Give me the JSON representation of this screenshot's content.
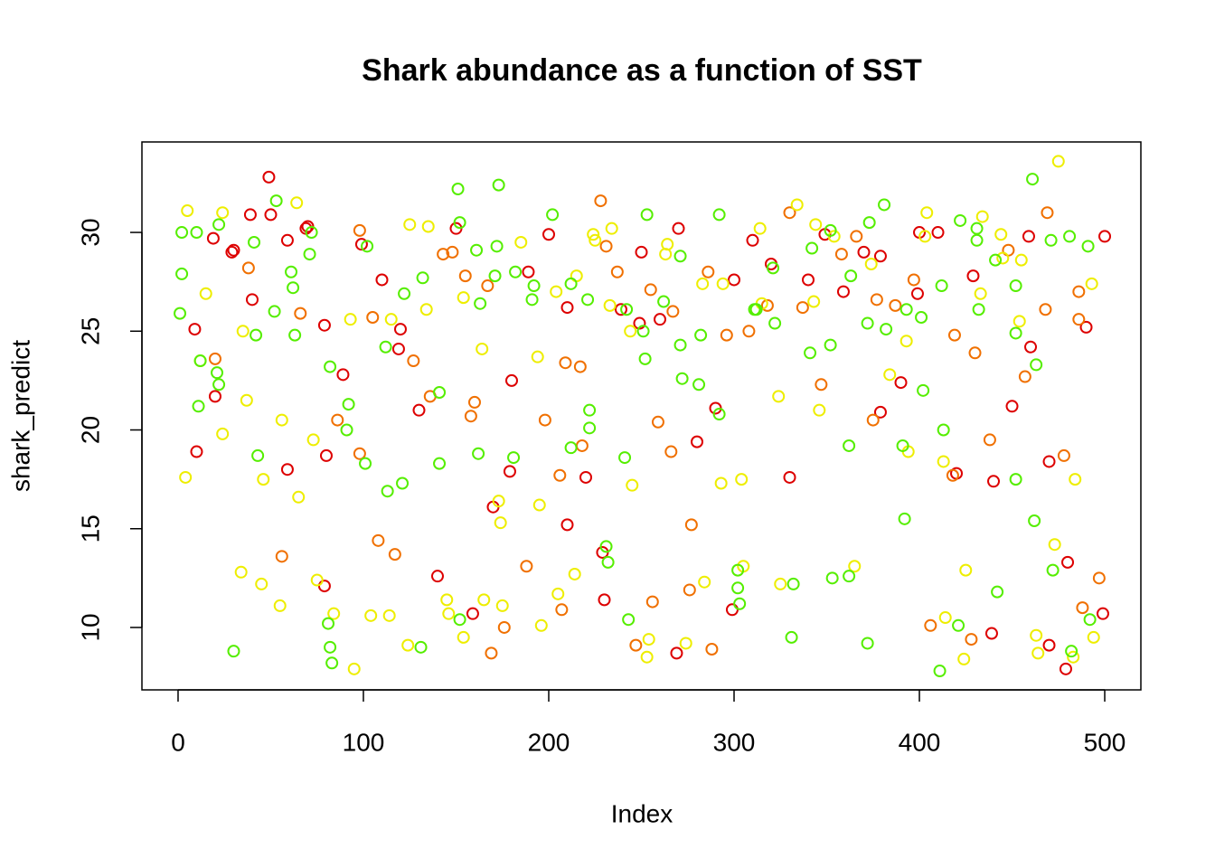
{
  "chart_data": {
    "type": "scatter",
    "title": "Shark abundance as a function of SST",
    "x_label": "Index",
    "y_label": "shark_predict",
    "xlim": [
      -19.5,
      519.5
    ],
    "ylim": [
      6.84,
      34.58
    ],
    "xticks": [
      0,
      100,
      200,
      300,
      400,
      500
    ],
    "yticks": [
      10,
      15,
      20,
      25,
      30
    ],
    "series": [
      {
        "color": "#dd0000",
        "x": [
          9,
          10,
          19,
          20,
          29,
          30,
          39,
          40,
          49,
          50,
          59,
          59,
          69,
          70,
          79,
          80,
          79,
          89,
          99,
          110,
          119,
          120,
          130,
          140,
          150,
          159,
          170,
          179,
          180,
          189,
          200,
          210,
          210,
          220,
          230,
          229,
          239,
          249,
          250,
          260,
          270,
          269,
          280,
          290,
          299,
          300,
          310,
          320,
          330,
          340,
          349,
          359,
          370,
          379,
          379,
          390,
          399,
          400,
          410,
          420,
          429,
          440,
          439,
          450,
          459,
          460,
          470,
          470,
          480,
          479,
          490,
          499,
          500
        ],
        "values": [
          25.1,
          18.9,
          29.7,
          21.7,
          29,
          29.1,
          30.9,
          26.6,
          32.8,
          30.9,
          29.6,
          18,
          30.2,
          30.3,
          12.1,
          18.7,
          25.3,
          22.8,
          29.4,
          27.6,
          24.1,
          25.1,
          21,
          12.6,
          30.2,
          10.7,
          16.1,
          17.9,
          22.5,
          28,
          29.9,
          26.2,
          15.2,
          17.6,
          11.4,
          13.8,
          26.1,
          25.4,
          29,
          25.6,
          30.2,
          8.7,
          19.4,
          21.1,
          10.9,
          27.6,
          29.6,
          28.4,
          17.6,
          27.6,
          29.9,
          27,
          29,
          20.9,
          28.8,
          22.4,
          26.9,
          30,
          30,
          17.8,
          27.8,
          17.4,
          9.7,
          21.2,
          29.8,
          24.2,
          9.1,
          18.4,
          13.3,
          7.9,
          25.2,
          10.7,
          29.8
        ]
      },
      {
        "color": "#f07000",
        "x": [
          20,
          38,
          56,
          66,
          86,
          98,
          98,
          105,
          108,
          117,
          127,
          136,
          143,
          148,
          155,
          158,
          160,
          167,
          169,
          176,
          188,
          198,
          206,
          207,
          209,
          217,
          218,
          228,
          231,
          237,
          247,
          255,
          256,
          259,
          266,
          267,
          277,
          276,
          286,
          288,
          296,
          308,
          318,
          330,
          337,
          347,
          358,
          366,
          375,
          377,
          387,
          397,
          406,
          418,
          419,
          428,
          430,
          438,
          448,
          457,
          468,
          469,
          478,
          486,
          488,
          497,
          486
        ],
        "values": [
          23.6,
          28.2,
          13.6,
          25.9,
          20.5,
          30.1,
          18.8,
          25.7,
          14.4,
          13.7,
          23.5,
          21.7,
          28.9,
          29,
          27.8,
          20.7,
          21.4,
          27.3,
          8.7,
          10,
          13.1,
          20.5,
          17.7,
          10.9,
          23.4,
          23.2,
          19.2,
          31.6,
          29.3,
          28,
          9.1,
          27.1,
          11.3,
          20.4,
          18.9,
          26,
          15.2,
          11.9,
          28,
          8.9,
          24.8,
          25,
          26.3,
          31,
          26.2,
          22.3,
          28.9,
          29.8,
          20.5,
          26.6,
          26.3,
          27.6,
          10.1,
          17.7,
          24.8,
          9.4,
          23.9,
          19.5,
          29.1,
          22.7,
          26.1,
          31,
          18.7,
          25.6,
          11,
          12.5,
          27
        ]
      },
      {
        "color": "#eeee00",
        "x": [
          4,
          5,
          12,
          15,
          24,
          24,
          34,
          35,
          37,
          45,
          46,
          55,
          56,
          64,
          65,
          73,
          75,
          84,
          93,
          95,
          104,
          114,
          115,
          124,
          125,
          134,
          135,
          145,
          146,
          154,
          154,
          164,
          165,
          173,
          174,
          175,
          185,
          194,
          195,
          196,
          204,
          205,
          214,
          215,
          224,
          225,
          233,
          234,
          244,
          245,
          253,
          254,
          264,
          263,
          274,
          283,
          284,
          293,
          294,
          304,
          305,
          314,
          315,
          324,
          325,
          334,
          343,
          344,
          346,
          354,
          365,
          374,
          384,
          393,
          394,
          403,
          404,
          413,
          414,
          424,
          425,
          433,
          434,
          444,
          445,
          454,
          455,
          463,
          464,
          473,
          475,
          483,
          484,
          493,
          494
        ],
        "values": [
          17.6,
          31.1,
          23.5,
          26.9,
          19.8,
          31,
          12.8,
          25,
          21.5,
          12.2,
          17.5,
          11.1,
          20.5,
          31.5,
          16.6,
          19.5,
          12.4,
          10.7,
          25.6,
          7.9,
          10.6,
          10.6,
          25.6,
          9.1,
          30.4,
          26.1,
          30.3,
          11.4,
          10.7,
          26.7,
          9.5,
          24.1,
          11.4,
          16.4,
          15.3,
          11.1,
          29.5,
          23.7,
          16.2,
          10.1,
          27,
          11.7,
          12.7,
          27.8,
          29.9,
          29.6,
          26.3,
          30.2,
          25,
          17.2,
          8.5,
          9.4,
          29.4,
          28.9,
          9.2,
          27.4,
          12.3,
          17.3,
          27.4,
          17.5,
          13.1,
          30.2,
          26.4,
          21.7,
          12.2,
          31.4,
          26.5,
          30.4,
          21,
          29.8,
          13.1,
          28.4,
          22.8,
          24.5,
          18.9,
          29.8,
          31,
          18.4,
          10.5,
          8.4,
          12.9,
          26.9,
          30.8,
          29.9,
          28.7,
          25.5,
          28.6,
          9.6,
          8.7,
          14.2,
          33.6,
          8.5,
          17.5,
          27.4,
          9.5
        ]
      },
      {
        "color": "#55ee00",
        "x": [
          1,
          2,
          2,
          10,
          11,
          12,
          21,
          22,
          22,
          30,
          41,
          42,
          43,
          52,
          53,
          61,
          62,
          63,
          71,
          72,
          81,
          82,
          82,
          83,
          91,
          92,
          101,
          102,
          112,
          113,
          121,
          122,
          131,
          132,
          141,
          141,
          151,
          152,
          152,
          161,
          162,
          163,
          171,
          172,
          173,
          181,
          182,
          191,
          192,
          202,
          212,
          212,
          222,
          222,
          221,
          231,
          232,
          241,
          242,
          243,
          251,
          252,
          253,
          262,
          271,
          271,
          272,
          281,
          282,
          292,
          292,
          302,
          302,
          303,
          311,
          312,
          322,
          321,
          331,
          332,
          341,
          342,
          352,
          352,
          353,
          362,
          362,
          363,
          372,
          372,
          373,
          381,
          382,
          391,
          392,
          393,
          401,
          402,
          411,
          412,
          413,
          421,
          422,
          431,
          431,
          432,
          441,
          442,
          452,
          452,
          452,
          461,
          462,
          463,
          471,
          472,
          481,
          482,
          491,
          492
        ],
        "values": [
          25.9,
          27.9,
          30,
          30,
          21.2,
          23.5,
          22.9,
          30.4,
          22.3,
          8.8,
          29.5,
          24.8,
          18.7,
          26,
          31.6,
          28,
          27.2,
          24.8,
          28.9,
          30,
          10.2,
          23.2,
          9,
          8.2,
          20,
          21.3,
          18.3,
          29.3,
          24.2,
          16.9,
          17.3,
          26.9,
          9,
          27.7,
          18.3,
          21.9,
          32.2,
          30.5,
          10.4,
          29.1,
          18.8,
          26.4,
          27.8,
          29.3,
          32.4,
          18.6,
          28,
          26.6,
          27.3,
          30.9,
          27.4,
          19.1,
          21,
          20.1,
          26.6,
          14.1,
          13.3,
          18.6,
          26.1,
          10.4,
          25,
          23.6,
          30.9,
          26.5,
          28.8,
          24.3,
          22.6,
          22.3,
          24.8,
          20.8,
          30.9,
          12.9,
          12,
          11.2,
          26.1,
          26.1,
          25.4,
          28.2,
          9.5,
          12.2,
          23.9,
          29.2,
          30.1,
          24.3,
          12.5,
          19.2,
          12.6,
          27.8,
          25.4,
          9.2,
          30.5,
          31.4,
          25.1,
          19.2,
          15.5,
          26.1,
          25.7,
          22,
          7.8,
          27.3,
          20,
          10.1,
          30.6,
          30.2,
          29.6,
          26.1,
          28.6,
          11.8,
          27.3,
          24.9,
          17.5,
          32.7,
          15.4,
          23.3,
          29.6,
          12.9,
          29.8,
          8.8,
          29.3,
          10.4
        ]
      }
    ]
  }
}
